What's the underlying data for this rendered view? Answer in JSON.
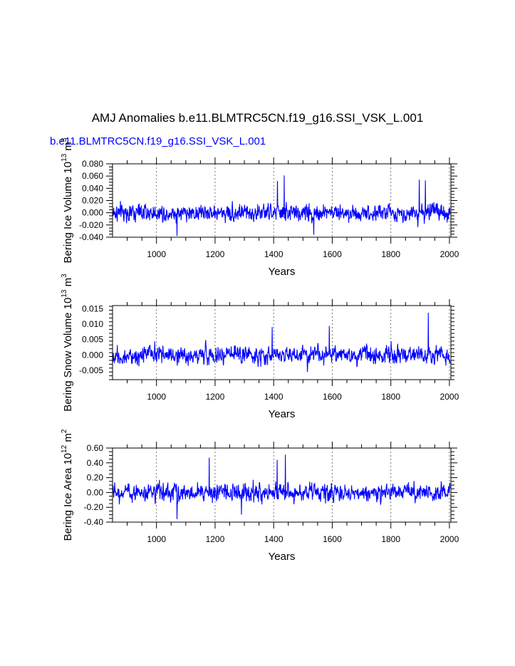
{
  "title": "AMJ Anomalies b.e11.BLMTRC5CN.f19_g16.SSI_VSK_L.001",
  "subtitle": "b.e11.BLMTRC5CN.f19_g16.SSI_VSK_L.001",
  "line_color": "#0000ff",
  "chart_data": [
    {
      "type": "line",
      "ylabel": "Bering Ice Volume 10",
      "ylabel_exp": "13",
      "ylabel_unit": "m",
      "ylabel_unit_exp": "3",
      "xlabel": "Years",
      "xlim": [
        850,
        2005
      ],
      "ylim": [
        -0.04,
        0.08
      ],
      "yticks": [
        -0.04,
        -0.02,
        0.0,
        0.02,
        0.04,
        0.06,
        0.08
      ],
      "ytick_labels": [
        "-0.040",
        "-0.020",
        "0.000",
        "0.020",
        "0.040",
        "0.060",
        "0.080"
      ],
      "xticks": [
        1000,
        1200,
        1400,
        1600,
        1800,
        2000
      ],
      "xtick_labels": [
        "1000",
        "1200",
        "1400",
        "1600",
        "1800",
        "2000"
      ],
      "grid": "dashed vertical lines at x ticks",
      "series": [
        {
          "amplitude": 0.011,
          "peaks": [
            [
              1436,
              0.061
            ],
            [
              1897,
              0.054
            ],
            [
              1918,
              0.053
            ],
            [
              1413,
              0.052
            ],
            [
              1070,
              -0.038
            ],
            [
              1537,
              -0.036
            ]
          ]
        }
      ]
    },
    {
      "type": "line",
      "ylabel": "Bering Snow Volume 10",
      "ylabel_exp": "13",
      "ylabel_unit": "m",
      "ylabel_unit_exp": "3",
      "xlabel": "Years",
      "xlim": [
        850,
        2005
      ],
      "ylim": [
        -0.008,
        0.016
      ],
      "yticks": [
        -0.005,
        0.0,
        0.005,
        0.01,
        0.015
      ],
      "ytick_labels": [
        "-0.005",
        "0.000",
        "0.005",
        "0.010",
        "0.015"
      ],
      "xticks": [
        1000,
        1200,
        1400,
        1600,
        1800,
        2000
      ],
      "xtick_labels": [
        "1000",
        "1200",
        "1400",
        "1600",
        "1800",
        "2000"
      ],
      "grid": "dashed vertical lines at x ticks",
      "series": [
        {
          "amplitude": 0.0022,
          "peaks": [
            [
              1928,
              0.0137
            ],
            [
              1590,
              0.0094
            ],
            [
              1395,
              0.009
            ],
            [
              1515,
              -0.0055
            ]
          ]
        }
      ]
    },
    {
      "type": "line",
      "ylabel": "Bering Ice Area 10",
      "ylabel_exp": "12",
      "ylabel_unit": "m",
      "ylabel_unit_exp": "2",
      "xlabel": "Years",
      "xlim": [
        850,
        2005
      ],
      "ylim": [
        -0.4,
        0.6
      ],
      "yticks": [
        -0.4,
        -0.2,
        0.0,
        0.2,
        0.4,
        0.6
      ],
      "ytick_labels": [
        "-0.40",
        "-0.20",
        "0.00",
        "0.20",
        "0.40",
        "0.60"
      ],
      "xticks": [
        1000,
        1200,
        1400,
        1600,
        1800,
        2000
      ],
      "xtick_labels": [
        "1000",
        "1200",
        "1400",
        "1600",
        "1800",
        "2000"
      ],
      "grid": "dashed vertical lines at x ticks",
      "series": [
        {
          "amplitude": 0.09,
          "peaks": [
            [
              1440,
              0.51
            ],
            [
              1180,
              0.47
            ],
            [
              1412,
              0.44
            ],
            [
              1070,
              -0.36
            ],
            [
              1290,
              -0.3
            ]
          ]
        }
      ]
    }
  ]
}
